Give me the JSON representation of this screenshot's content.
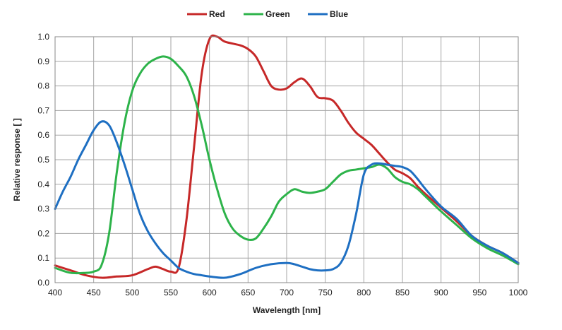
{
  "chart_data": {
    "type": "line",
    "title": "",
    "xlabel": "Wavelength  [nm]",
    "ylabel": "Relative response [ ]",
    "xlim": [
      400,
      1000
    ],
    "ylim": [
      0.0,
      1.0
    ],
    "x_ticks": [
      "400",
      "450",
      "500",
      "550",
      "600",
      "650",
      "700",
      "750",
      "800",
      "850",
      "900",
      "950",
      "1000"
    ],
    "y_ticks": [
      "0.0",
      "0.1",
      "0.2",
      "0.3",
      "0.4",
      "0.5",
      "0.6",
      "0.7",
      "0.8",
      "0.9",
      "1.0"
    ],
    "grid": true,
    "legend_position": "top",
    "series": [
      {
        "name": "Red",
        "color": "#c62828",
        "x": [
          400,
          420,
          440,
          460,
          480,
          500,
          520,
          530,
          540,
          550,
          560,
          570,
          580,
          590,
          600,
          610,
          620,
          640,
          650,
          660,
          670,
          680,
          690,
          700,
          710,
          720,
          730,
          740,
          750,
          760,
          770,
          780,
          790,
          800,
          810,
          820,
          830,
          840,
          850,
          860,
          870,
          880,
          900,
          920,
          940,
          960,
          980,
          1000
        ],
        "y": [
          0.07,
          0.05,
          0.03,
          0.02,
          0.025,
          0.03,
          0.055,
          0.065,
          0.055,
          0.045,
          0.06,
          0.25,
          0.55,
          0.85,
          0.99,
          1.0,
          0.98,
          0.965,
          0.95,
          0.92,
          0.86,
          0.8,
          0.785,
          0.79,
          0.815,
          0.83,
          0.8,
          0.755,
          0.75,
          0.74,
          0.7,
          0.65,
          0.61,
          0.585,
          0.56,
          0.525,
          0.49,
          0.46,
          0.445,
          0.425,
          0.39,
          0.36,
          0.305,
          0.25,
          0.19,
          0.15,
          0.12,
          0.08
        ]
      },
      {
        "name": "Green",
        "color": "#2db34a",
        "x": [
          400,
          420,
          440,
          450,
          460,
          470,
          480,
          490,
          500,
          510,
          520,
          530,
          540,
          550,
          560,
          570,
          580,
          590,
          600,
          610,
          620,
          630,
          640,
          650,
          660,
          670,
          680,
          690,
          700,
          710,
          720,
          730,
          740,
          750,
          760,
          770,
          780,
          790,
          800,
          810,
          820,
          830,
          840,
          850,
          860,
          870,
          880,
          900,
          920,
          940,
          960,
          980,
          1000
        ],
        "y": [
          0.06,
          0.04,
          0.04,
          0.045,
          0.07,
          0.2,
          0.45,
          0.65,
          0.78,
          0.85,
          0.89,
          0.91,
          0.92,
          0.91,
          0.88,
          0.84,
          0.76,
          0.64,
          0.5,
          0.38,
          0.28,
          0.22,
          0.19,
          0.175,
          0.18,
          0.22,
          0.27,
          0.33,
          0.36,
          0.38,
          0.37,
          0.365,
          0.37,
          0.38,
          0.41,
          0.44,
          0.455,
          0.46,
          0.465,
          0.47,
          0.48,
          0.465,
          0.43,
          0.41,
          0.4,
          0.38,
          0.35,
          0.29,
          0.235,
          0.18,
          0.14,
          0.11,
          0.075
        ]
      },
      {
        "name": "Blue",
        "color": "#1e6fc2",
        "x": [
          400,
          410,
          420,
          430,
          440,
          450,
          460,
          470,
          480,
          490,
          500,
          510,
          520,
          530,
          540,
          550,
          560,
          570,
          580,
          590,
          600,
          620,
          640,
          660,
          680,
          700,
          710,
          720,
          730,
          740,
          750,
          760,
          770,
          780,
          790,
          800,
          810,
          820,
          830,
          840,
          850,
          860,
          870,
          880,
          900,
          920,
          940,
          960,
          980,
          1000
        ],
        "y": [
          0.3,
          0.37,
          0.43,
          0.5,
          0.56,
          0.62,
          0.655,
          0.64,
          0.57,
          0.48,
          0.38,
          0.28,
          0.21,
          0.16,
          0.12,
          0.09,
          0.06,
          0.045,
          0.035,
          0.03,
          0.025,
          0.02,
          0.035,
          0.06,
          0.075,
          0.08,
          0.075,
          0.065,
          0.055,
          0.05,
          0.05,
          0.055,
          0.08,
          0.15,
          0.28,
          0.44,
          0.48,
          0.485,
          0.48,
          0.475,
          0.47,
          0.455,
          0.42,
          0.38,
          0.31,
          0.26,
          0.19,
          0.15,
          0.12,
          0.08
        ]
      }
    ]
  }
}
